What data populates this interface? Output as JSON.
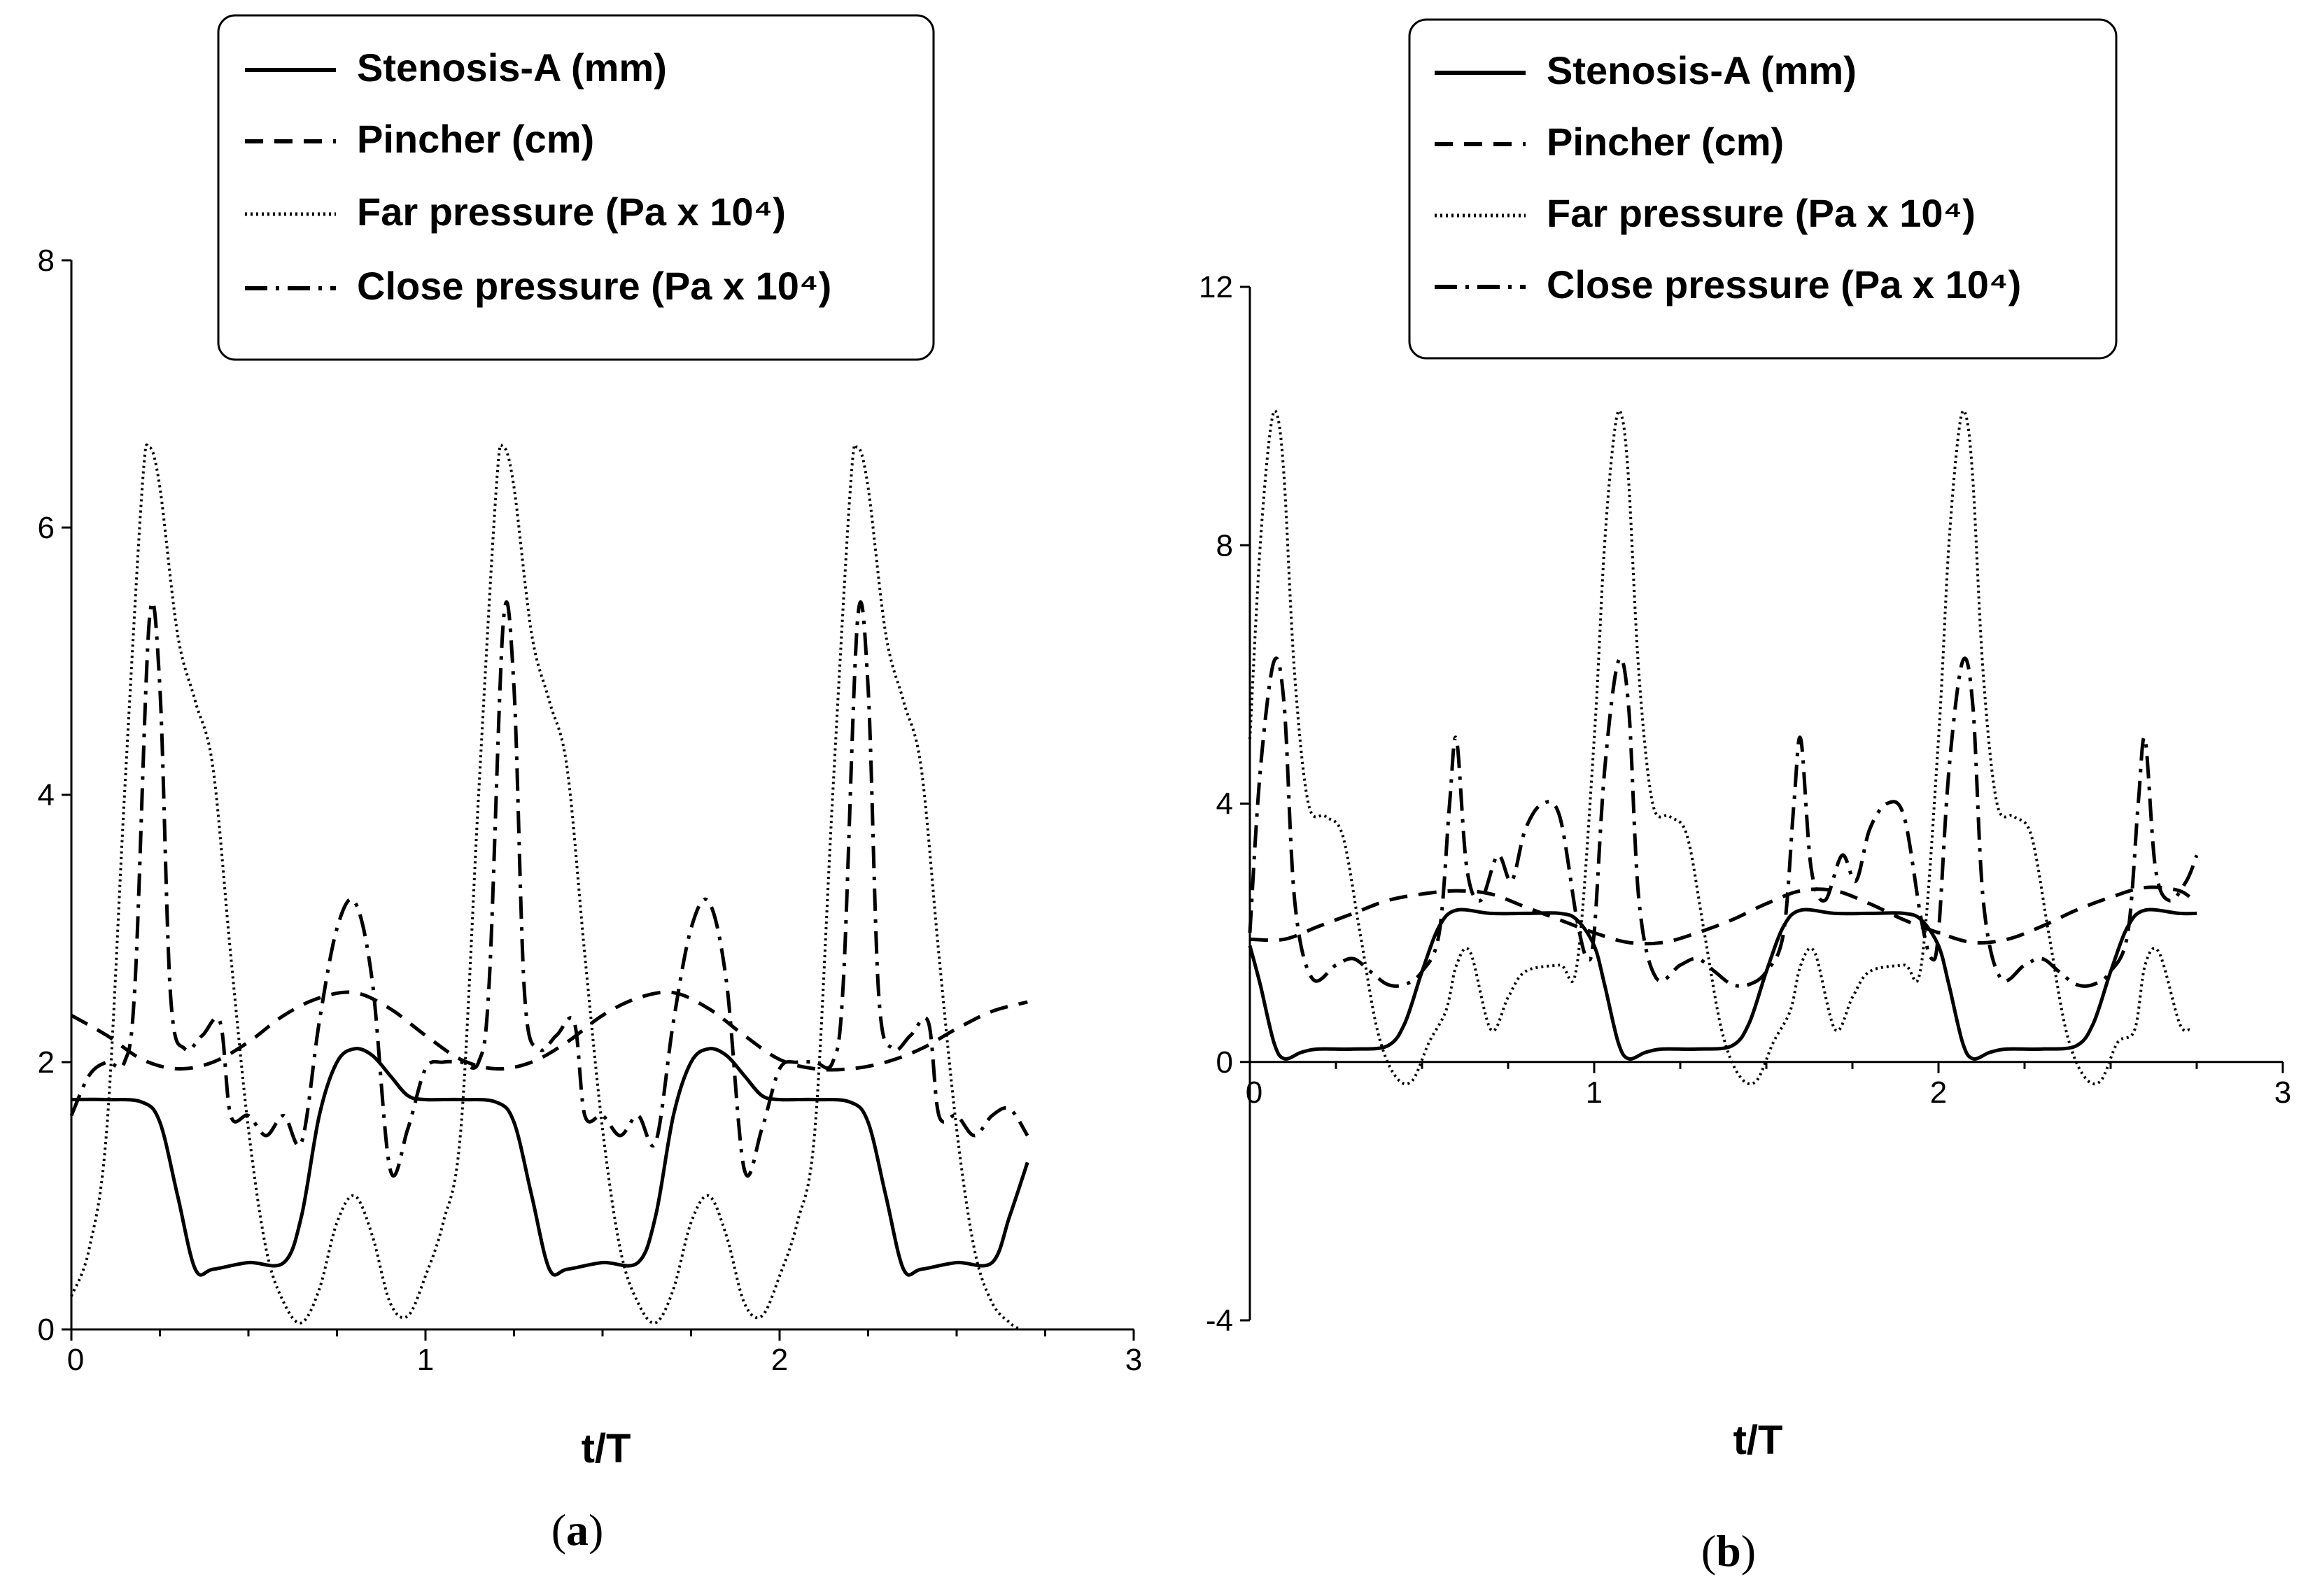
{
  "chart_data": [
    {
      "type": "line",
      "panel_label": "a",
      "xlabel": "t/T",
      "ylabel": "",
      "xlim": [
        0,
        3
      ],
      "ylim": [
        0,
        8
      ],
      "xticks": [
        0,
        1,
        2,
        3
      ],
      "yticks": [
        0,
        2,
        4,
        6,
        8
      ],
      "grid": false,
      "legend_position": "top-center",
      "series": [
        {
          "name": "Stenosis-A (mm)",
          "style": "solid",
          "x": [
            0,
            0.1,
            0.2,
            0.25,
            0.3,
            0.35,
            0.4,
            0.5,
            0.6,
            0.65,
            0.7,
            0.75,
            0.8,
            0.85,
            0.9,
            0.95,
            1.0,
            1.1,
            1.2,
            1.25,
            1.3,
            1.35,
            1.4,
            1.5,
            1.6,
            1.65,
            1.7,
            1.75,
            1.8,
            1.85,
            1.9,
            1.95,
            2.0,
            2.1,
            2.2,
            2.25,
            2.3,
            2.35,
            2.4,
            2.5,
            2.6,
            2.65,
            2.7
          ],
          "y": [
            1.72,
            1.72,
            1.7,
            1.55,
            1.0,
            0.45,
            0.45,
            0.5,
            0.5,
            0.85,
            1.6,
            2.0,
            2.1,
            2.05,
            1.9,
            1.75,
            1.72,
            1.72,
            1.7,
            1.55,
            1.0,
            0.45,
            0.45,
            0.5,
            0.5,
            0.85,
            1.6,
            2.0,
            2.1,
            2.05,
            1.9,
            1.75,
            1.72,
            1.72,
            1.7,
            1.55,
            1.0,
            0.45,
            0.45,
            0.5,
            0.5,
            0.85,
            1.25
          ]
        },
        {
          "name": "Pincher (cm)",
          "style": "dashed",
          "x": [
            0,
            0.1,
            0.2,
            0.3,
            0.4,
            0.5,
            0.6,
            0.7,
            0.8,
            0.9,
            1.0,
            1.1,
            1.2,
            1.3,
            1.4,
            1.5,
            1.6,
            1.7,
            1.8,
            1.9,
            2.0,
            2.1,
            2.2,
            2.3,
            2.4,
            2.5,
            2.6,
            2.7
          ],
          "y": [
            2.35,
            2.2,
            2.02,
            1.95,
            2.0,
            2.15,
            2.35,
            2.48,
            2.52,
            2.4,
            2.2,
            2.02,
            1.95,
            2.0,
            2.15,
            2.35,
            2.48,
            2.52,
            2.4,
            2.2,
            2.02,
            1.95,
            1.95,
            2.0,
            2.1,
            2.25,
            2.38,
            2.45
          ]
        },
        {
          "name": "Far pressure (Pa x 10⁴)",
          "style": "dotted",
          "x": [
            0,
            0.05,
            0.1,
            0.15,
            0.2,
            0.22,
            0.25,
            0.3,
            0.35,
            0.4,
            0.45,
            0.5,
            0.55,
            0.6,
            0.65,
            0.7,
            0.75,
            0.8,
            0.85,
            0.9,
            0.95,
            1.0,
            1.05,
            1.1,
            1.15,
            1.2,
            1.22,
            1.25,
            1.3,
            1.35,
            1.4,
            1.45,
            1.5,
            1.55,
            1.6,
            1.65,
            1.7,
            1.75,
            1.8,
            1.85,
            1.9,
            1.95,
            2.0,
            2.05,
            2.1,
            2.15,
            2.2,
            2.22,
            2.25,
            2.3,
            2.35,
            2.4,
            2.45,
            2.5,
            2.55,
            2.6,
            2.65,
            2.68
          ],
          "y": [
            0.25,
            0.6,
            1.5,
            4.0,
            6.3,
            6.6,
            6.3,
            5.2,
            4.7,
            4.2,
            2.8,
            1.5,
            0.6,
            0.2,
            0.05,
            0.3,
            0.8,
            1.0,
            0.7,
            0.2,
            0.1,
            0.4,
            0.8,
            1.5,
            4.0,
            6.3,
            6.6,
            6.3,
            5.2,
            4.7,
            4.2,
            2.8,
            1.5,
            0.6,
            0.2,
            0.05,
            0.3,
            0.8,
            1.0,
            0.7,
            0.2,
            0.1,
            0.4,
            0.8,
            1.5,
            4.0,
            6.3,
            6.6,
            6.3,
            5.2,
            4.7,
            4.2,
            2.8,
            1.5,
            0.6,
            0.2,
            0.05,
            0.0
          ]
        },
        {
          "name": "Close pressure (Pa x 10⁴)",
          "style": "dashdot",
          "x": [
            0,
            0.05,
            0.1,
            0.15,
            0.18,
            0.22,
            0.25,
            0.28,
            0.32,
            0.37,
            0.42,
            0.45,
            0.5,
            0.55,
            0.6,
            0.65,
            0.7,
            0.75,
            0.8,
            0.85,
            0.9,
            0.95,
            1.0,
            1.05,
            1.1,
            1.15,
            1.18,
            1.22,
            1.25,
            1.28,
            1.32,
            1.37,
            1.42,
            1.45,
            1.5,
            1.55,
            1.6,
            1.65,
            1.7,
            1.75,
            1.8,
            1.85,
            1.9,
            1.95,
            2.0,
            2.05,
            2.1,
            2.15,
            2.18,
            2.22,
            2.25,
            2.28,
            2.32,
            2.37,
            2.42,
            2.45,
            2.5,
            2.55,
            2.6,
            2.65,
            2.7
          ],
          "y": [
            1.6,
            1.9,
            2.0,
            2.0,
            2.6,
            5.3,
            4.8,
            2.5,
            2.1,
            2.2,
            2.3,
            1.6,
            1.6,
            1.45,
            1.6,
            1.4,
            2.3,
            3.0,
            3.2,
            2.6,
            1.2,
            1.5,
            1.95,
            2.0,
            2.0,
            2.0,
            2.6,
            5.3,
            4.8,
            2.5,
            2.1,
            2.2,
            2.3,
            1.6,
            1.6,
            1.45,
            1.6,
            1.4,
            2.3,
            3.0,
            3.2,
            2.6,
            1.2,
            1.5,
            1.95,
            2.0,
            2.0,
            2.0,
            2.6,
            5.3,
            4.8,
            2.5,
            2.1,
            2.2,
            2.3,
            1.6,
            1.6,
            1.45,
            1.6,
            1.65,
            1.45
          ]
        }
      ]
    },
    {
      "type": "line",
      "panel_label": "b",
      "xlabel": "t/T",
      "ylabel": "",
      "xlim": [
        0,
        3
      ],
      "ylim": [
        -4,
        12
      ],
      "xticks": [
        0,
        1,
        2,
        3
      ],
      "yticks": [
        -4,
        0,
        4,
        8,
        12
      ],
      "grid": false,
      "legend_position": "top-center",
      "series": [
        {
          "name": "Stenosis-A (mm)",
          "style": "solid",
          "x": [
            0,
            0.03,
            0.07,
            0.1,
            0.15,
            0.2,
            0.3,
            0.4,
            0.45,
            0.5,
            0.55,
            0.6,
            0.7,
            0.8,
            0.9,
            0.95,
            1.0,
            1.03,
            1.07,
            1.1,
            1.15,
            1.2,
            1.3,
            1.4,
            1.45,
            1.5,
            1.55,
            1.6,
            1.7,
            1.8,
            1.9,
            1.95,
            2.0,
            2.03,
            2.07,
            2.1,
            2.15,
            2.2,
            2.3,
            2.4,
            2.45,
            2.5,
            2.55,
            2.6,
            2.7,
            2.75
          ],
          "y": [
            1.8,
            1.2,
            0.3,
            0.05,
            0.15,
            0.2,
            0.2,
            0.25,
            0.6,
            1.4,
            2.1,
            2.35,
            2.3,
            2.3,
            2.3,
            2.2,
            1.8,
            1.2,
            0.3,
            0.05,
            0.15,
            0.2,
            0.2,
            0.25,
            0.6,
            1.4,
            2.1,
            2.35,
            2.3,
            2.3,
            2.3,
            2.2,
            1.8,
            1.2,
            0.3,
            0.05,
            0.15,
            0.2,
            0.2,
            0.25,
            0.6,
            1.4,
            2.1,
            2.35,
            2.3,
            2.3
          ]
        },
        {
          "name": "Pincher (cm)",
          "style": "dashed",
          "x": [
            0,
            0.1,
            0.2,
            0.3,
            0.4,
            0.5,
            0.6,
            0.7,
            0.8,
            0.9,
            1.0,
            1.1,
            1.2,
            1.3,
            1.4,
            1.5,
            1.6,
            1.7,
            1.8,
            1.9,
            2.0,
            2.1,
            2.2,
            2.3,
            2.4,
            2.5,
            2.6,
            2.7,
            2.75
          ],
          "y": [
            1.9,
            1.9,
            2.1,
            2.3,
            2.5,
            2.6,
            2.65,
            2.6,
            2.4,
            2.2,
            2.0,
            1.85,
            1.85,
            2.0,
            2.2,
            2.45,
            2.65,
            2.65,
            2.45,
            2.2,
            2.0,
            1.85,
            1.9,
            2.1,
            2.35,
            2.55,
            2.7,
            2.65,
            2.45
          ]
        },
        {
          "name": "Far pressure (Pa x 10⁴)",
          "style": "dotted",
          "x": [
            0,
            0.03,
            0.06,
            0.08,
            0.1,
            0.13,
            0.17,
            0.22,
            0.27,
            0.32,
            0.37,
            0.42,
            0.47,
            0.52,
            0.57,
            0.6,
            0.64,
            0.7,
            0.75,
            0.8,
            0.9,
            0.95,
            1.0,
            1.03,
            1.06,
            1.08,
            1.1,
            1.13,
            1.17,
            1.22,
            1.27,
            1.32,
            1.37,
            1.42,
            1.47,
            1.52,
            1.57,
            1.6,
            1.64,
            1.7,
            1.75,
            1.8,
            1.9,
            1.95,
            2.0,
            2.03,
            2.06,
            2.08,
            2.1,
            2.13,
            2.17,
            2.22,
            2.27,
            2.32,
            2.37,
            2.42,
            2.47,
            2.52,
            2.57,
            2.6,
            2.64,
            2.7,
            2.73
          ],
          "y": [
            5.0,
            8.0,
            9.8,
            10.0,
            9.0,
            6.0,
            4.0,
            3.8,
            3.5,
            2.0,
            0.5,
            -0.2,
            -0.3,
            0.3,
            0.8,
            1.5,
            1.7,
            0.5,
            1.0,
            1.4,
            1.5,
            1.5,
            5.0,
            8.0,
            9.8,
            10.0,
            9.0,
            6.0,
            4.0,
            3.8,
            3.5,
            2.0,
            0.5,
            -0.2,
            -0.3,
            0.3,
            0.8,
            1.5,
            1.7,
            0.5,
            1.0,
            1.4,
            1.5,
            1.5,
            5.0,
            8.0,
            9.8,
            10.0,
            9.0,
            6.0,
            4.0,
            3.8,
            3.5,
            2.0,
            0.5,
            -0.2,
            -0.3,
            0.3,
            0.5,
            1.5,
            1.7,
            0.6,
            0.5
          ]
        },
        {
          "name": "Close pressure (Pa x 10⁴)",
          "style": "dashdot",
          "x": [
            0,
            0.03,
            0.07,
            0.1,
            0.13,
            0.18,
            0.25,
            0.3,
            0.35,
            0.4,
            0.45,
            0.5,
            0.55,
            0.58,
            0.6,
            0.63,
            0.67,
            0.72,
            0.76,
            0.8,
            0.85,
            0.9,
            0.95,
            0.98,
            1.0,
            1.03,
            1.07,
            1.1,
            1.13,
            1.18,
            1.25,
            1.3,
            1.35,
            1.4,
            1.45,
            1.5,
            1.55,
            1.58,
            1.6,
            1.63,
            1.67,
            1.72,
            1.76,
            1.8,
            1.85,
            1.9,
            1.95,
            1.98,
            2.0,
            2.03,
            2.07,
            2.1,
            2.13,
            2.18,
            2.25,
            2.3,
            2.35,
            2.4,
            2.45,
            2.5,
            2.55,
            2.58,
            2.6,
            2.63,
            2.67,
            2.72,
            2.75
          ],
          "y": [
            2.0,
            4.5,
            6.2,
            5.5,
            2.5,
            1.3,
            1.5,
            1.6,
            1.4,
            1.2,
            1.2,
            1.4,
            2.0,
            4.0,
            5.0,
            3.0,
            2.5,
            3.2,
            2.8,
            3.6,
            4.0,
            3.8,
            2.2,
            1.6,
            2.0,
            4.5,
            6.2,
            5.5,
            2.5,
            1.3,
            1.5,
            1.6,
            1.4,
            1.2,
            1.2,
            1.4,
            2.0,
            4.0,
            5.0,
            3.0,
            2.5,
            3.2,
            2.8,
            3.6,
            4.0,
            3.8,
            2.2,
            1.6,
            2.0,
            4.5,
            6.2,
            5.5,
            2.5,
            1.3,
            1.5,
            1.6,
            1.4,
            1.2,
            1.2,
            1.4,
            2.0,
            4.0,
            5.0,
            3.0,
            2.5,
            2.8,
            3.2
          ]
        }
      ]
    }
  ]
}
